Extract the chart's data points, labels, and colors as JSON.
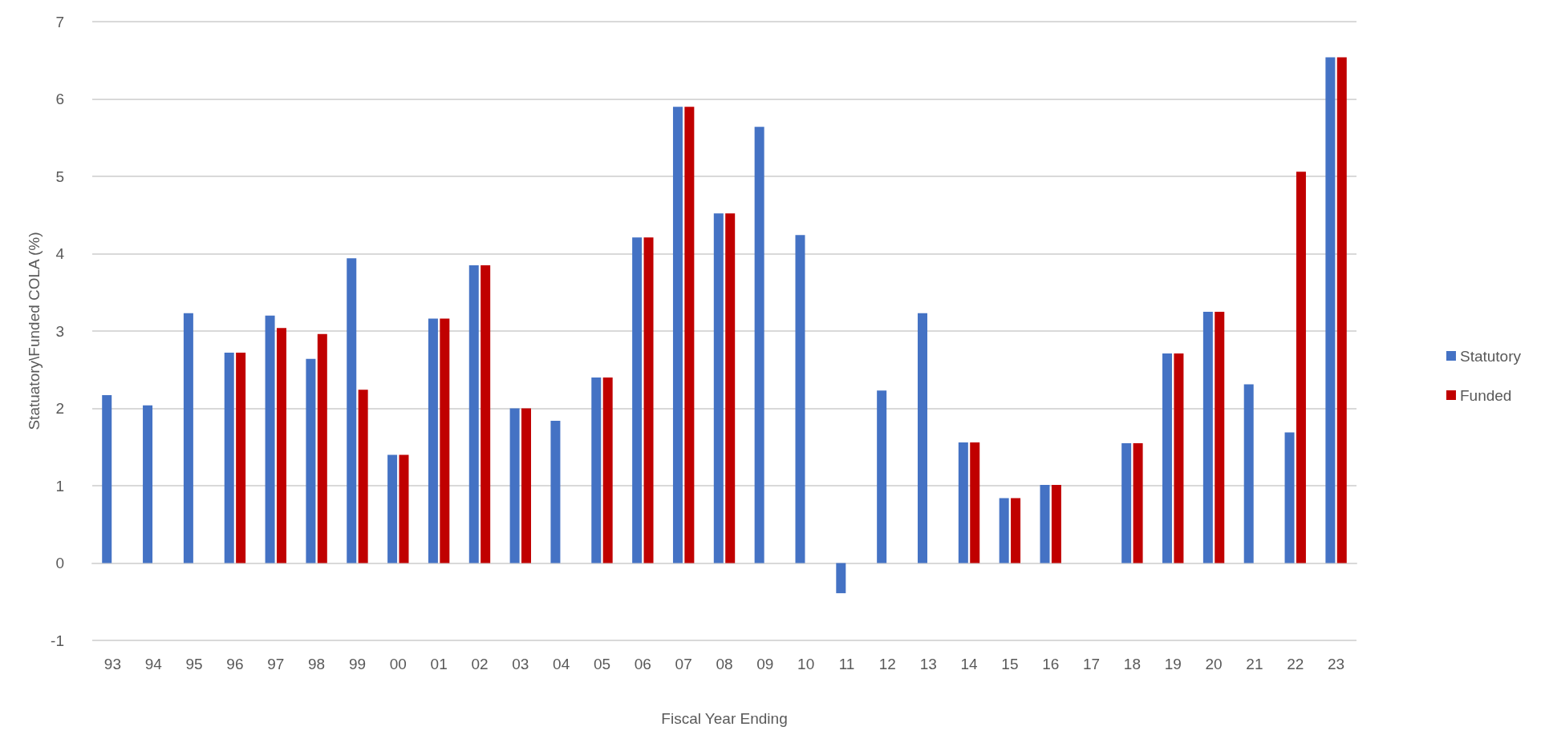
{
  "chart_data": {
    "type": "bar",
    "xlabel": "Fiscal Year Ending",
    "ylabel": "Statuatory\\Funded COLA (%)",
    "categories": [
      "93",
      "94",
      "95",
      "96",
      "97",
      "98",
      "99",
      "00",
      "01",
      "02",
      "03",
      "04",
      "05",
      "06",
      "07",
      "08",
      "09",
      "10",
      "11",
      "12",
      "13",
      "14",
      "15",
      "16",
      "17",
      "18",
      "19",
      "20",
      "21",
      "22",
      "23"
    ],
    "series": [
      {
        "name": "Statutory",
        "color": "#4472c4",
        "values": [
          2.17,
          2.04,
          3.23,
          2.72,
          3.2,
          2.64,
          3.94,
          1.4,
          3.16,
          3.85,
          2.0,
          1.84,
          2.4,
          4.21,
          5.9,
          4.52,
          5.64,
          4.24,
          -0.39,
          2.23,
          3.23,
          1.56,
          0.84,
          1.01,
          null,
          1.55,
          2.71,
          3.25,
          2.31,
          1.69,
          6.54
        ]
      },
      {
        "name": "Funded",
        "color": "#c00000",
        "values": [
          null,
          null,
          null,
          2.72,
          3.04,
          2.96,
          2.24,
          1.4,
          3.16,
          3.85,
          2.0,
          null,
          2.4,
          4.21,
          5.9,
          4.52,
          null,
          null,
          null,
          null,
          null,
          1.56,
          0.84,
          1.01,
          null,
          1.55,
          2.71,
          3.25,
          null,
          5.06,
          6.54
        ]
      }
    ],
    "ylim": [
      -1,
      7
    ],
    "yticks": [
      -1,
      0,
      1,
      2,
      3,
      4,
      5,
      6,
      7
    ],
    "grid": "y",
    "legend": "right"
  }
}
